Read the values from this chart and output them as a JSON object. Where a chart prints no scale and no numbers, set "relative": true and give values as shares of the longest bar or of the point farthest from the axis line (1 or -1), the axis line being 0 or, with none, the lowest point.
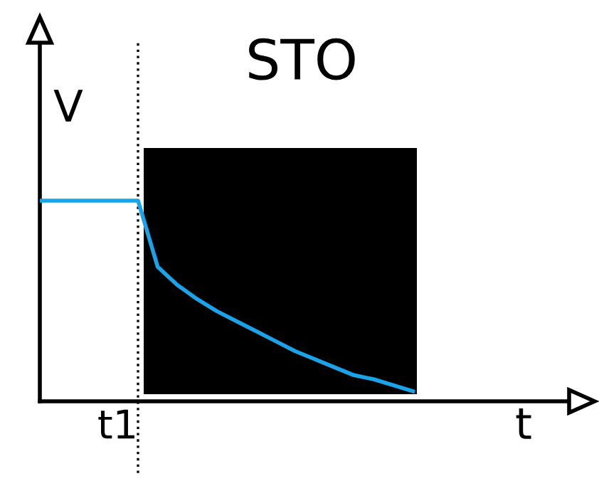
{
  "chart_data": {
    "type": "line",
    "title": "STO",
    "ylabel": "V",
    "xlabel": "t",
    "relative": true,
    "annotations": [
      "t1"
    ],
    "categories": [
      null,
      null,
      null,
      null,
      null,
      null,
      null,
      null,
      null,
      null,
      null,
      null,
      null,
      null,
      null,
      null,
      null,
      null,
      null,
      null
    ],
    "series": [
      {
        "color": "#1aa3e8",
        "values": [
          1,
          1,
          1,
          1,
          1,
          1,
          0.67,
          0.58,
          0.51,
          0.45,
          0.4,
          0.35,
          0.3,
          0.25,
          0.21,
          0.17,
          0.13,
          0.11,
          0.08,
          0.05
        ]
      }
    ],
    "grid": false,
    "legend": false,
    "marker": "none",
    "line_style": "solid"
  }
}
